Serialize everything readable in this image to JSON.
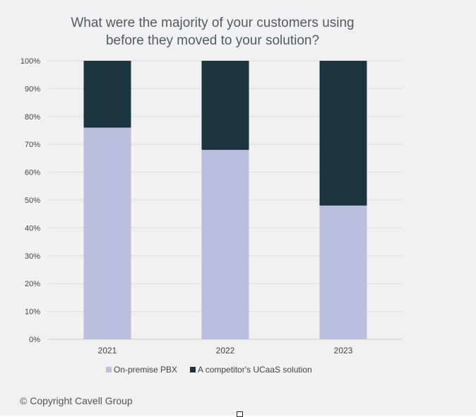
{
  "chart_data": {
    "type": "stacked-bar",
    "title_lines": [
      "What were the majority of your customers using",
      "before they moved to your solution?"
    ],
    "categories": [
      "2021",
      "2022",
      "2023"
    ],
    "series": [
      {
        "name": "On-premise PBX",
        "values": [
          76,
          68,
          48
        ],
        "color": "#babfde"
      },
      {
        "name": "A competitor's UCaaS solution",
        "values": [
          24,
          32,
          52
        ],
        "color": "#1a3540"
      }
    ],
    "ylim": [
      0,
      100
    ],
    "yticks": [
      "0%",
      "10%",
      "20%",
      "30%",
      "40%",
      "50%",
      "60%",
      "70%",
      "80%",
      "90%",
      "100%"
    ],
    "grid": true,
    "legend_position": "bottom"
  },
  "footer": {
    "copyright": "© Copyright Cavell Group"
  }
}
